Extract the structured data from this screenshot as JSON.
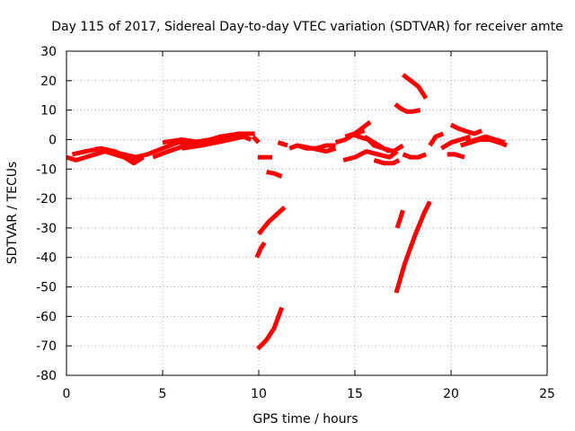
{
  "chart_data": {
    "type": "line",
    "title": "Day 115 of 2017, Sidereal Day-to-day VTEC variation (SDTVAR) for receiver amte",
    "xlabel": "GPS time / hours",
    "ylabel": "SDTVAR / TECUs",
    "xlim": [
      0,
      25
    ],
    "ylim": [
      -80,
      30
    ],
    "x_ticks": [
      0,
      5,
      10,
      15,
      20,
      25
    ],
    "y_ticks": [
      -80,
      -70,
      -60,
      -50,
      -40,
      -30,
      -20,
      -10,
      0,
      10,
      20,
      30
    ],
    "x_tick_labels": [
      "0",
      "5",
      "10",
      "15",
      "20",
      "25"
    ],
    "y_tick_labels": [
      "-80",
      "-70",
      "-60",
      "-50",
      "-40",
      "-30",
      "-20",
      "-10",
      "0",
      "10",
      "20",
      "30"
    ],
    "grid": true,
    "color": "#ff0000",
    "series": [
      {
        "x": [
          0.0,
          0.5,
          1.0,
          1.5,
          2.0,
          2.5,
          3.0,
          3.5,
          4.0
        ],
        "y": [
          -6,
          -7,
          -6,
          -5,
          -4,
          -5,
          -6,
          -8,
          -6
        ]
      },
      {
        "x": [
          0.3,
          1.0,
          1.8,
          2.5,
          3.2,
          3.8
        ],
        "y": [
          -5,
          -4,
          -3,
          -4,
          -6,
          -7
        ]
      },
      {
        "x": [
          1.5,
          2.2,
          3.0,
          3.6,
          4.2,
          5.0,
          5.8,
          6.5,
          7.5,
          8.5,
          9.5
        ],
        "y": [
          -3,
          -4,
          -5,
          -6,
          -5,
          -3,
          -1,
          -1,
          0,
          1,
          1
        ]
      },
      {
        "x": [
          4.5,
          5.3,
          6.2,
          7.0,
          7.8
        ],
        "y": [
          -6,
          -4,
          -2,
          -1,
          0
        ]
      },
      {
        "x": [
          5.0,
          6.0,
          7.0,
          8.0,
          9.0,
          9.8
        ],
        "y": [
          -1,
          0,
          -1,
          1,
          2,
          2
        ]
      },
      {
        "x": [
          6.0,
          7.0,
          7.8,
          8.5,
          9.2,
          9.6
        ],
        "y": [
          -3,
          -2,
          -1,
          0,
          1,
          0
        ]
      },
      {
        "x": [
          9.7,
          10.0
        ],
        "y": [
          1,
          -1
        ]
      },
      {
        "x": [
          9.95,
          10.3,
          10.7
        ],
        "y": [
          -6,
          -6,
          -6
        ]
      },
      {
        "x": [
          10.4,
          10.8,
          11.2
        ],
        "y": [
          -11,
          -11.5,
          -12.5
        ]
      },
      {
        "x": [
          10.0,
          10.5,
          11.0,
          11.35
        ],
        "y": [
          -32,
          -28,
          -25,
          -23
        ]
      },
      {
        "x": [
          9.9,
          10.1,
          10.3
        ],
        "y": [
          -40,
          -37,
          -35
        ]
      },
      {
        "x": [
          9.95,
          10.4,
          10.8,
          11.2
        ],
        "y": [
          -71,
          -68,
          -64,
          -57
        ]
      },
      {
        "x": [
          11.0,
          11.5
        ],
        "y": [
          -1,
          -2
        ]
      },
      {
        "x": [
          11.6,
          12.0,
          12.5,
          13.0,
          13.5,
          14.0
        ],
        "y": [
          -3,
          -2,
          -3,
          -3,
          -2,
          -2
        ]
      },
      {
        "x": [
          12.0,
          12.8,
          13.5,
          14.0
        ],
        "y": [
          -2,
          -3,
          -4,
          -3
        ]
      },
      {
        "x": [
          14.0,
          14.5,
          15.0,
          15.5
        ],
        "y": [
          -1,
          0,
          2,
          3
        ]
      },
      {
        "x": [
          14.5,
          15.0,
          15.4,
          15.8
        ],
        "y": [
          1,
          2,
          4,
          6
        ]
      },
      {
        "x": [
          14.8,
          15.2,
          15.7,
          16.0,
          16.5,
          16.8
        ],
        "y": [
          2,
          1,
          0,
          -2,
          -3,
          -4
        ]
      },
      {
        "x": [
          15.5,
          16.0,
          16.5,
          17.0,
          17.5
        ],
        "y": [
          1,
          -1,
          -3,
          -4,
          -2
        ]
      },
      {
        "x": [
          14.4,
          15.0,
          15.6,
          16.2,
          16.8,
          17.2
        ],
        "y": [
          -7,
          -6,
          -4,
          -5,
          -6,
          -4
        ]
      },
      {
        "x": [
          16.0,
          16.5,
          17.0,
          17.3
        ],
        "y": [
          -7,
          -8,
          -8,
          -7
        ]
      },
      {
        "x": [
          17.1,
          17.4,
          17.7,
          18.0,
          18.4
        ],
        "y": [
          12,
          10.5,
          9.5,
          9.5,
          10
        ]
      },
      {
        "x": [
          17.5,
          17.9,
          18.3,
          18.7
        ],
        "y": [
          22,
          20,
          18,
          14
        ]
      },
      {
        "x": [
          17.5,
          17.9,
          18.3,
          18.7
        ],
        "y": [
          -5,
          -6,
          -6,
          -5
        ]
      },
      {
        "x": [
          17.2,
          17.35,
          17.5
        ],
        "y": [
          -30,
          -27,
          -24
        ]
      },
      {
        "x": [
          17.15,
          17.6,
          18.1,
          18.6,
          18.9
        ],
        "y": [
          -52,
          -42,
          -33,
          -25,
          -21
        ]
      },
      {
        "x": [
          18.9,
          19.2,
          19.6
        ],
        "y": [
          -2,
          1,
          2
        ]
      },
      {
        "x": [
          19.5,
          20.0,
          20.5,
          21.0
        ],
        "y": [
          -3,
          -1,
          0,
          1
        ]
      },
      {
        "x": [
          20.0,
          20.3,
          20.7,
          21.2,
          21.6
        ],
        "y": [
          5,
          4,
          3,
          2,
          3
        ]
      },
      {
        "x": [
          19.8,
          20.2,
          20.7
        ],
        "y": [
          -5,
          -5,
          -6
        ]
      },
      {
        "x": [
          20.5,
          21.0,
          21.5,
          22.0,
          22.5,
          22.9
        ],
        "y": [
          -2,
          -1,
          0,
          0,
          -1,
          -2
        ]
      },
      {
        "x": [
          20.8,
          21.3,
          21.8,
          22.3,
          22.8
        ],
        "y": [
          -1,
          0,
          1,
          0,
          -1
        ]
      }
    ]
  }
}
